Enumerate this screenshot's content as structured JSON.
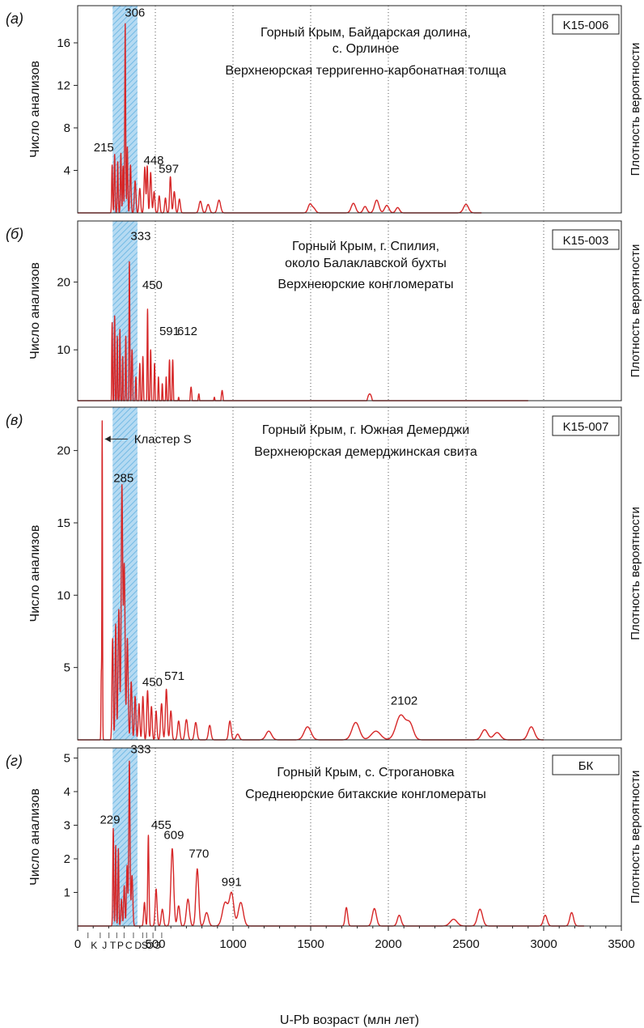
{
  "colors": {
    "curve": "#d62728",
    "band_fill": "#a8d4f0",
    "band_hatch": "#5aaee0",
    "axis": "#222222"
  },
  "shared": {
    "xlabel": "U-Pb возраст (млн лет)",
    "ylabel": "Число анализов",
    "y2label": "Плотность вероятности",
    "xlim": [
      0,
      3500
    ],
    "xticks": [
      0,
      500,
      1000,
      1500,
      2000,
      2500,
      3000,
      3500
    ],
    "highlight_band": [
      225,
      385
    ],
    "period_letters": [
      "K",
      "J",
      "T",
      "P",
      "C",
      "D",
      "S",
      "O",
      "Э"
    ]
  },
  "chart_data": [
    {
      "type": "line",
      "panel_label": "(а)",
      "sample": "K15-006",
      "title_lines": [
        "Горный Крым, Байдарская долина,",
        "с. Орлиное",
        "Верхнеюрская терригенно-карбонатная толща"
      ],
      "ylim": [
        0,
        19.5
      ],
      "yticks": [
        4,
        8,
        12,
        16
      ],
      "peak_labels": [
        {
          "text": "306",
          "x": 306,
          "y": 18
        },
        {
          "text": "215",
          "x": 215,
          "y": 5.5
        },
        {
          "text": "448",
          "x": 448,
          "y": 4.4
        },
        {
          "text": "597",
          "x": 597,
          "y": 3.3
        }
      ],
      "series": [
        {
          "peaks": [
            [
              222,
              4.5,
              3
            ],
            [
              238,
              5.5,
              3
            ],
            [
              258,
              4.8,
              3
            ],
            [
              278,
              5.6,
              3
            ],
            [
              292,
              4.4,
              3
            ],
            [
              306,
              17.8,
              3
            ],
            [
              320,
              6.2,
              3
            ],
            [
              340,
              4.5,
              4
            ],
            [
              370,
              3,
              5
            ],
            [
              400,
              2.3,
              5
            ],
            [
              432,
              4.3,
              5
            ],
            [
              448,
              4.4,
              4
            ],
            [
              470,
              3.8,
              5
            ],
            [
              492,
              2,
              5
            ],
            [
              525,
              1.6,
              5
            ],
            [
              565,
              1.4,
              5
            ],
            [
              597,
              3.4,
              5
            ],
            [
              622,
              2,
              6
            ],
            [
              655,
              1.3,
              6
            ],
            [
              790,
              1.1,
              9
            ],
            [
              840,
              0.8,
              9
            ],
            [
              910,
              1.2,
              10
            ],
            [
              1495,
              0.8,
              12
            ],
            [
              1520,
              0.4,
              12
            ],
            [
              1775,
              0.9,
              14
            ],
            [
              1850,
              0.6,
              12
            ],
            [
              1925,
              1.2,
              14
            ],
            [
              1990,
              0.7,
              14
            ],
            [
              2060,
              0.5,
              12
            ],
            [
              2500,
              0.8,
              16
            ]
          ]
        }
      ],
      "data_xmax": 2600
    },
    {
      "type": "line",
      "panel_label": "(б)",
      "sample": "K15-003",
      "title_lines": [
        "Горный Крым, г. Спилия,",
        "около Балаклавской бухты",
        "Верхнеюрские конгломераты"
      ],
      "ylim": [
        2.5,
        29
      ],
      "yticks": [
        10,
        20
      ],
      "peak_labels": [
        {
          "text": "333",
          "x": 333,
          "y": 25.5
        },
        {
          "text": "450",
          "x": 450,
          "y": 18.5
        },
        {
          "text": "591",
          "x": 591,
          "y": 11.2
        },
        {
          "text": "612",
          "x": 612,
          "y": 11.2
        }
      ],
      "series": [
        {
          "peaks": [
            [
              222,
              14,
              3
            ],
            [
              238,
              15,
              3
            ],
            [
              255,
              12,
              3
            ],
            [
              272,
              13,
              3
            ],
            [
              290,
              9,
              3
            ],
            [
              310,
              12,
              3
            ],
            [
              333,
              23,
              3
            ],
            [
              350,
              10,
              4
            ],
            [
              375,
              6,
              4
            ],
            [
              400,
              8,
              4
            ],
            [
              420,
              9,
              4
            ],
            [
              450,
              16,
              3
            ],
            [
              470,
              10,
              4
            ],
            [
              495,
              8,
              4
            ],
            [
              520,
              6,
              4
            ],
            [
              545,
              5,
              4
            ],
            [
              570,
              6,
              4
            ],
            [
              591,
              8.5,
              4
            ],
            [
              612,
              8.5,
              4
            ],
            [
              650,
              3,
              6
            ],
            [
              730,
              4.5,
              7
            ],
            [
              780,
              3.5,
              7
            ],
            [
              840,
              2.5,
              8
            ],
            [
              880,
              3,
              8
            ],
            [
              930,
              4,
              8
            ],
            [
              990,
              2.5,
              9
            ],
            [
              1480,
              0.5,
              16
            ],
            [
              1750,
              1.5,
              35
            ],
            [
              1880,
              3.5,
              22
            ],
            [
              1990,
              2,
              28
            ],
            [
              2100,
              1,
              26
            ],
            [
              2360,
              1.4,
              12
            ],
            [
              2490,
              1.6,
              20
            ],
            [
              2560,
              1,
              18
            ],
            [
              2700,
              1.3,
              14
            ],
            [
              2840,
              1,
              14
            ]
          ]
        }
      ],
      "data_xmax": 2900
    },
    {
      "type": "line",
      "panel_label": "(в)",
      "sample": "K15-007",
      "title_lines": [
        "Горный Крым, г. Южная Демерджи",
        "Верхнеюрская демерджинская свита"
      ],
      "ylim": [
        0,
        23
      ],
      "yticks": [
        5,
        10,
        15,
        20
      ],
      "peak_labels": [
        {
          "text": "285",
          "x": 285,
          "y": 17.5
        },
        {
          "text": "450",
          "x": 450,
          "y": 3.5
        },
        {
          "text": "571",
          "x": 571,
          "y": 3.8
        },
        {
          "text": "2102",
          "x": 2102,
          "y": 2.0
        }
      ],
      "annotation": {
        "text": "Кластер S",
        "x": 155,
        "y": 20.8
      },
      "series": [
        {
          "peaks": [
            [
              152,
              4.5,
              2
            ],
            [
              158,
              22,
              2
            ],
            [
              225,
              7,
              4
            ],
            [
              245,
              8,
              4
            ],
            [
              265,
              9,
              5
            ],
            [
              285,
              17.5,
              5
            ],
            [
              300,
              12,
              5
            ],
            [
              320,
              7,
              5
            ],
            [
              345,
              4,
              5
            ],
            [
              370,
              3,
              5
            ],
            [
              395,
              2.5,
              5
            ],
            [
              420,
              3,
              5
            ],
            [
              450,
              3.4,
              5
            ],
            [
              475,
              2.3,
              5
            ],
            [
              505,
              2,
              5
            ],
            [
              540,
              2.5,
              6
            ],
            [
              571,
              3.5,
              6
            ],
            [
              600,
              2,
              6
            ],
            [
              650,
              1.3,
              7
            ],
            [
              700,
              1.4,
              8
            ],
            [
              760,
              1.2,
              8
            ],
            [
              850,
              1,
              8
            ],
            [
              980,
              1.3,
              8
            ],
            [
              1030,
              0.4,
              10
            ],
            [
              1230,
              0.6,
              18
            ],
            [
              1480,
              0.9,
              22
            ],
            [
              1790,
              1.2,
              24
            ],
            [
              1920,
              0.6,
              30
            ],
            [
              2080,
              1.7,
              30
            ],
            [
              2140,
              1,
              22
            ],
            [
              2620,
              0.7,
              20
            ],
            [
              2700,
              0.5,
              22
            ],
            [
              2920,
              0.9,
              20
            ]
          ]
        }
      ],
      "data_xmax": 3000
    },
    {
      "type": "line",
      "panel_label": "(г)",
      "sample": "БК",
      "title_lines": [
        "Горный Крым, с. Строгановка",
        "Среднеюрские битакские конгломераты"
      ],
      "ylim": [
        0,
        5.3
      ],
      "yticks": [
        1,
        2,
        3,
        4,
        5
      ],
      "peak_labels": [
        {
          "text": "333",
          "x": 333,
          "y": 5.0
        },
        {
          "text": "229",
          "x": 229,
          "y": 2.9
        },
        {
          "text": "455",
          "x": 455,
          "y": 2.8
        },
        {
          "text": "609",
          "x": 609,
          "y": 2.35
        },
        {
          "text": "770",
          "x": 770,
          "y": 1.8
        },
        {
          "text": "991",
          "x": 991,
          "y": 1.0
        }
      ],
      "series": [
        {
          "peaks": [
            [
              229,
              2.9,
              3
            ],
            [
              245,
              2.4,
              3
            ],
            [
              262,
              2.3,
              3
            ],
            [
              282,
              0.8,
              4
            ],
            [
              300,
              1.2,
              4
            ],
            [
              318,
              1.8,
              4
            ],
            [
              333,
              4.9,
              4
            ],
            [
              350,
              1.5,
              5
            ],
            [
              430,
              0.7,
              5
            ],
            [
              455,
              2.7,
              4
            ],
            [
              505,
              1.1,
              6
            ],
            [
              545,
              0.5,
              7
            ],
            [
              609,
              2.3,
              9
            ],
            [
              650,
              0.6,
              8
            ],
            [
              710,
              0.8,
              10
            ],
            [
              770,
              1.7,
              9
            ],
            [
              830,
              0.4,
              12
            ],
            [
              950,
              0.7,
              18
            ],
            [
              991,
              0.95,
              14
            ],
            [
              1050,
              0.7,
              16
            ],
            [
              1730,
              0.55,
              8
            ],
            [
              1910,
              0.52,
              13
            ],
            [
              2070,
              0.32,
              12
            ],
            [
              2420,
              0.2,
              22
            ],
            [
              2590,
              0.5,
              16
            ],
            [
              3010,
              0.32,
              12
            ],
            [
              3180,
              0.4,
              12
            ]
          ]
        }
      ],
      "data_xmax": 3260
    }
  ]
}
